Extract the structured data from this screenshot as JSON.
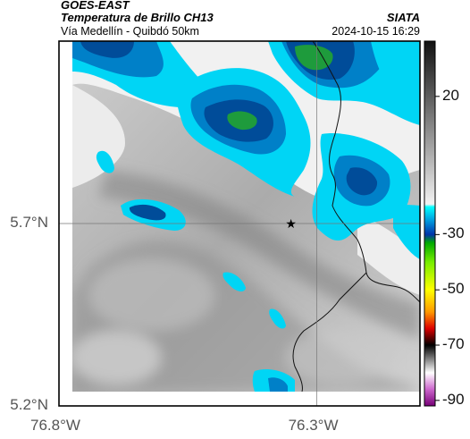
{
  "header": {
    "satellite": "GOES-EAST",
    "product": "Temperatura de Brillo CH13",
    "route": "Vía Medellín - Quibdó 50km",
    "organization": "SIATA",
    "datetime": "2024-10-15 16:29"
  },
  "axes": {
    "y_ticks": [
      {
        "value": 5.7,
        "label": "5.7°N"
      },
      {
        "value": 5.2,
        "label": "5.2°N"
      }
    ],
    "x_ticks": [
      {
        "value": -76.8,
        "label": "76.8°W"
      },
      {
        "value": -76.3,
        "label": "76.3°W"
      }
    ],
    "lon_range": [
      -76.8,
      -76.1
    ],
    "lat_range": [
      5.2,
      6.2
    ]
  },
  "colorbar": {
    "ticks": [
      {
        "value": 20,
        "label": "20"
      },
      {
        "value": -30,
        "label": "-30"
      },
      {
        "value": -50,
        "label": "-50"
      },
      {
        "value": -70,
        "label": "-70"
      },
      {
        "value": -90,
        "label": "-90"
      }
    ],
    "stops": [
      {
        "value": 40,
        "color": "#111111"
      },
      {
        "value": -19,
        "color": "#f2f2f2"
      },
      {
        "value": -20,
        "color": "#00ffff"
      },
      {
        "value": -25,
        "color": "#0099dd"
      },
      {
        "value": -30,
        "color": "#0033aa"
      },
      {
        "value": -33,
        "color": "#00aa00"
      },
      {
        "value": -40,
        "color": "#77ee00"
      },
      {
        "value": -50,
        "color": "#ffff00"
      },
      {
        "value": -58,
        "color": "#ff9900"
      },
      {
        "value": -64,
        "color": "#dd0000"
      },
      {
        "value": -70,
        "color": "#000000"
      },
      {
        "value": -80,
        "color": "#ffffff"
      },
      {
        "value": -86,
        "color": "#cc66cc"
      },
      {
        "value": -92,
        "color": "#770077"
      }
    ]
  },
  "map": {
    "marker": {
      "name": "star-marker",
      "lon": -76.35,
      "lat": 5.7
    },
    "crosshair": {
      "lon": -76.3,
      "lat": 5.7
    },
    "colors": {
      "cloud_deep": "#004c99",
      "cloud_mid": "#0080c8",
      "cloud_light": "#00d5f5",
      "cloud_core": "#1e9b3c",
      "clear_light": "#f1f1f1",
      "clear_mid": "#b9b9b9",
      "clear_dark": "#8c8c8c",
      "border": "#111111"
    }
  }
}
